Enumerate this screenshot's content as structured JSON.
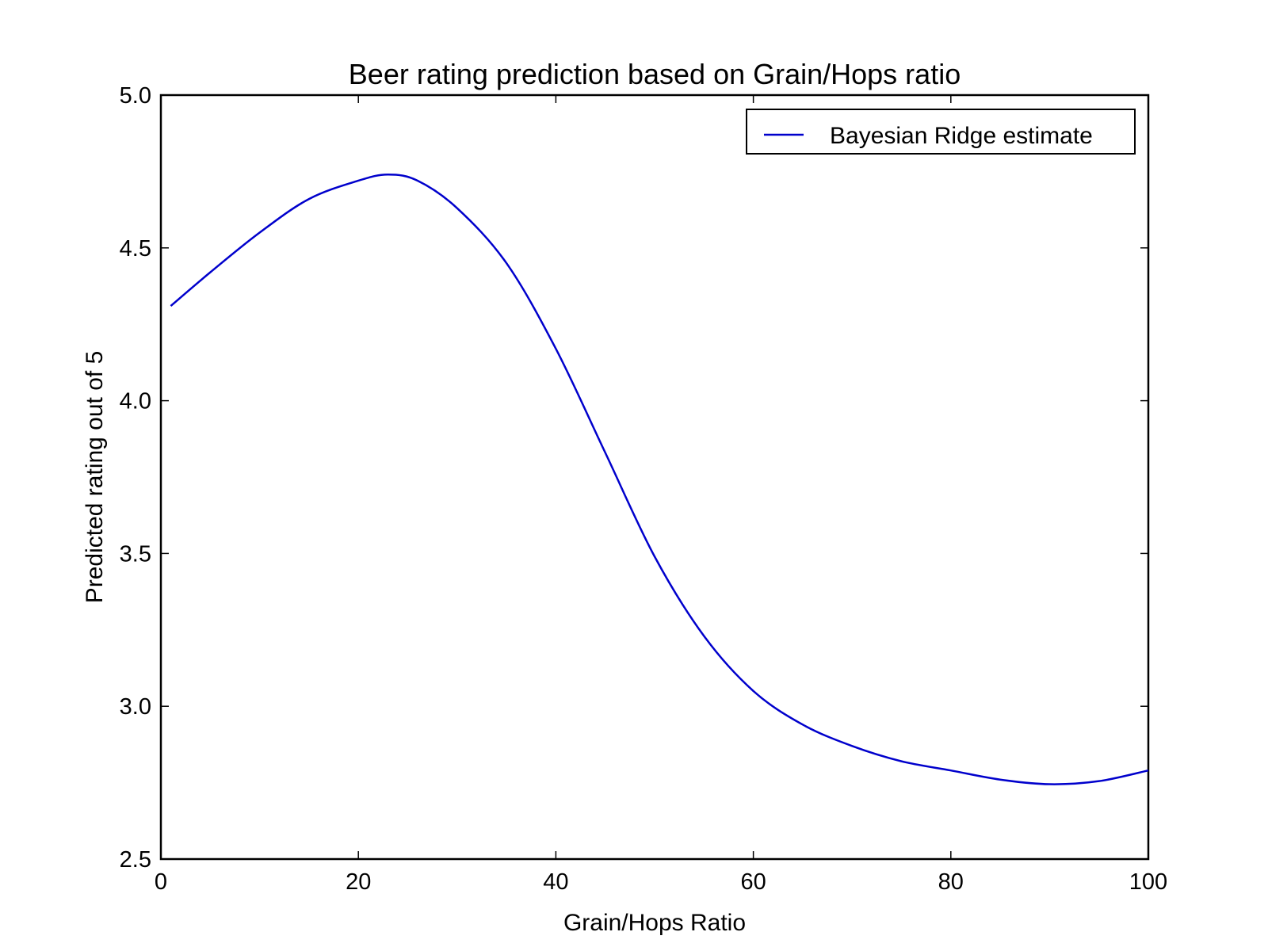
{
  "chart_data": {
    "type": "line",
    "title": "Beer rating prediction based on Grain/Hops ratio",
    "xlabel": "Grain/Hops Ratio",
    "ylabel": "Predicted rating out of 5",
    "xlim": [
      0,
      100
    ],
    "ylim": [
      2.5,
      5.0
    ],
    "xticks": [
      0,
      20,
      40,
      60,
      80,
      100
    ],
    "xtick_labels": [
      "0",
      "20",
      "40",
      "60",
      "80",
      "100"
    ],
    "yticks": [
      2.5,
      3.0,
      3.5,
      4.0,
      4.5,
      5.0
    ],
    "ytick_labels": [
      "2.5",
      "3.0",
      "3.5",
      "4.0",
      "4.5",
      "5.0"
    ],
    "grid": false,
    "legend": {
      "position": "top-right"
    },
    "series": [
      {
        "name": "Bayesian Ridge estimate",
        "color": "#0000cc",
        "x": [
          1,
          5,
          10,
          15,
          20,
          23,
          26,
          30,
          35,
          40,
          45,
          50,
          55,
          60,
          65,
          70,
          75,
          80,
          85,
          90,
          95,
          100
        ],
        "y": [
          4.31,
          4.42,
          4.55,
          4.66,
          4.72,
          4.74,
          4.72,
          4.63,
          4.45,
          4.17,
          3.83,
          3.49,
          3.23,
          3.05,
          2.94,
          2.87,
          2.82,
          2.79,
          2.76,
          2.745,
          2.755,
          2.79
        ]
      }
    ]
  }
}
